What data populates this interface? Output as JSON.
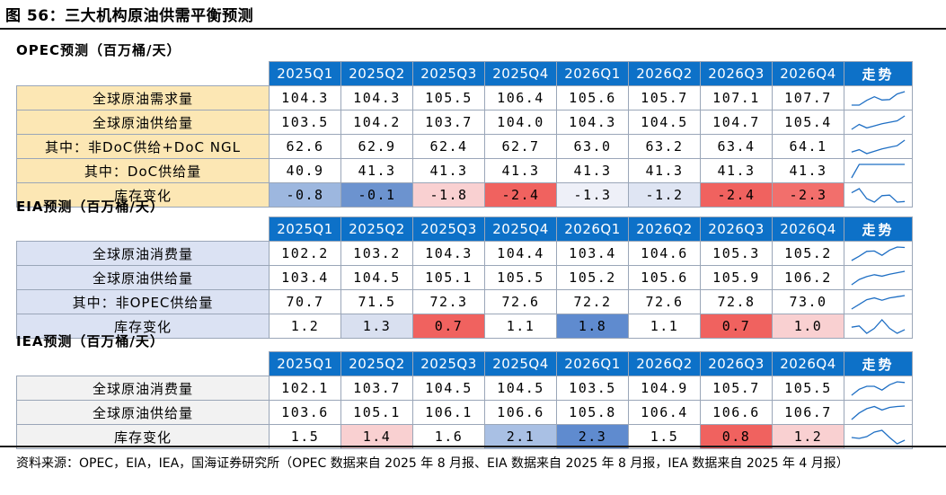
{
  "figure_title": "图 56：三大机构原油供需平衡预测",
  "source_note": "资料来源：OPEC，EIA，IEA，国海证券研究所（OPEC 数据来自 2025 年 8 月报、EIA 数据来自 2025 年 8 月报，IEA 数据来自 2025 年 4 月报）",
  "colors": {
    "header_bg": "#0d71c8",
    "opec_label_bg": "#fce7b4",
    "eia_label_bg": "#dbe2f3",
    "iea_label_bg": "#f2f2f2",
    "spark_line": "#1f6fc4"
  },
  "chart_data": [
    {
      "type": "table",
      "title": "OPEC预测（百万桶/天）",
      "columns": [
        "2025Q1",
        "2025Q2",
        "2025Q3",
        "2025Q4",
        "2026Q1",
        "2026Q2",
        "2026Q3",
        "2026Q4"
      ],
      "trend_header": "走势",
      "rows": [
        {
          "label": "全球原油需求量",
          "values": [
            "104.3",
            "104.3",
            "105.5",
            "106.4",
            "105.6",
            "105.7",
            "107.1",
            "107.7"
          ],
          "colors": []
        },
        {
          "label": "全球原油供给量",
          "values": [
            "103.5",
            "104.2",
            "103.7",
            "104.0",
            "104.3",
            "104.5",
            "104.7",
            "105.4"
          ],
          "colors": []
        },
        {
          "label": "其中：非DoC供给+DoC NGL",
          "values": [
            "62.6",
            "62.9",
            "62.4",
            "62.7",
            "63.0",
            "63.2",
            "63.4",
            "64.1"
          ],
          "colors": []
        },
        {
          "label": "其中：DoC供给量",
          "values": [
            "40.9",
            "41.3",
            "41.3",
            "41.3",
            "41.3",
            "41.3",
            "41.3",
            "41.3"
          ],
          "colors": []
        },
        {
          "label": "库存变化",
          "values": [
            "-0.8",
            "-0.1",
            "-1.8",
            "-2.4",
            "-1.3",
            "-1.2",
            "-2.4",
            "-2.3"
          ],
          "colors": [
            "#9db7df",
            "#6c93cf",
            "#f9d0d1",
            "#f0625f",
            "#eef0f8",
            "#dfe5f3",
            "#f0625f",
            "#f26f6c"
          ]
        }
      ]
    },
    {
      "type": "table",
      "title": "EIA预测（百万桶/天）",
      "columns": [
        "2025Q1",
        "2025Q2",
        "2025Q3",
        "2025Q4",
        "2026Q1",
        "2026Q2",
        "2026Q3",
        "2026Q4"
      ],
      "trend_header": "走势",
      "rows": [
        {
          "label": "全球原油消费量",
          "values": [
            "102.2",
            "103.2",
            "104.3",
            "104.4",
            "103.4",
            "104.6",
            "105.3",
            "105.2"
          ],
          "colors": []
        },
        {
          "label": "全球原油供给量",
          "values": [
            "103.4",
            "104.5",
            "105.1",
            "105.5",
            "105.2",
            "105.6",
            "105.9",
            "106.2"
          ],
          "colors": []
        },
        {
          "label": "其中：非OPEC供给量",
          "values": [
            "70.7",
            "71.5",
            "72.3",
            "72.6",
            "72.2",
            "72.6",
            "72.8",
            "73.0"
          ],
          "colors": []
        },
        {
          "label": "库存变化",
          "values": [
            "1.2",
            "1.3",
            "0.7",
            "1.1",
            "1.8",
            "1.1",
            "0.7",
            "1.0"
          ],
          "colors": [
            "#ffffff",
            "#d9e0f0",
            "#f0625f",
            "#ffffff",
            "#5f8bcf",
            "#ffffff",
            "#f0625f",
            "#f9d0d1"
          ]
        }
      ]
    },
    {
      "type": "table",
      "title": "IEA预测（百万桶/天）",
      "columns": [
        "2025Q1",
        "2025Q2",
        "2025Q3",
        "2025Q4",
        "2026Q1",
        "2026Q2",
        "2026Q3",
        "2026Q4"
      ],
      "trend_header": "走势",
      "rows": [
        {
          "label": "全球原油消费量",
          "values": [
            "102.1",
            "103.7",
            "104.5",
            "104.5",
            "103.5",
            "104.9",
            "105.7",
            "105.5"
          ],
          "colors": []
        },
        {
          "label": "全球原油供给量",
          "values": [
            "103.6",
            "105.1",
            "106.1",
            "106.6",
            "105.8",
            "106.4",
            "106.6",
            "106.7"
          ],
          "colors": []
        },
        {
          "label": "库存变化",
          "values": [
            "1.5",
            "1.4",
            "1.6",
            "2.1",
            "2.3",
            "1.5",
            "0.8",
            "1.2"
          ],
          "colors": [
            "#ffffff",
            "#f9d0d1",
            "#ffffff",
            "#a9c0e4",
            "#5f8bcf",
            "#ffffff",
            "#f0625f",
            "#f9d0d1"
          ]
        }
      ]
    }
  ]
}
